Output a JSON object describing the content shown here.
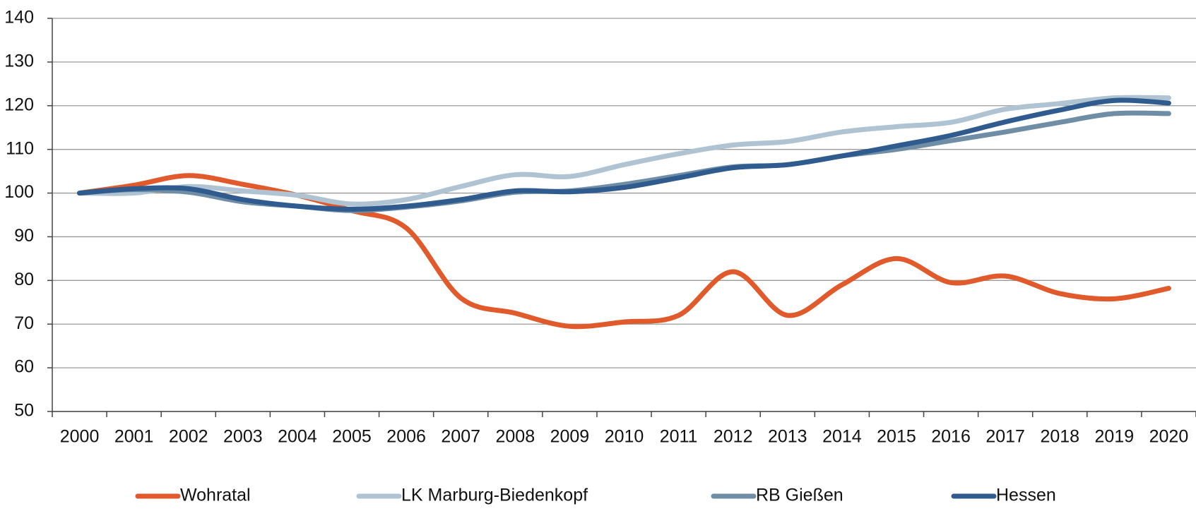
{
  "chart_data": {
    "type": "line",
    "categories": [
      "2000",
      "2001",
      "2002",
      "2003",
      "2004",
      "2005",
      "2006",
      "2007",
      "2008",
      "2009",
      "2010",
      "2011",
      "2012",
      "2013",
      "2014",
      "2015",
      "2016",
      "2017",
      "2018",
      "2019",
      "2020"
    ],
    "series": [
      {
        "name": "Wohratal",
        "color": "#e05a2b",
        "values": [
          100,
          101.8,
          104,
          102,
          99.5,
          96,
          92,
          76,
          72.5,
          69.5,
          70.5,
          72,
          82,
          72,
          79,
          85,
          79.5,
          81,
          77,
          75.8,
          78.2
        ]
      },
      {
        "name": "LK Marburg-Biedenkopf",
        "color": "#b0c3d3",
        "values": [
          100,
          100,
          101.5,
          100.5,
          99.5,
          97.5,
          98.5,
          101.5,
          104.2,
          103.8,
          106.5,
          109,
          111,
          111.8,
          114,
          115.2,
          116.2,
          119.2,
          120.5,
          121.8,
          121.8
        ]
      },
      {
        "name": "RB Gießen",
        "color": "#6f8ea6",
        "values": [
          100,
          100.8,
          100.2,
          98,
          97,
          96,
          96.8,
          98.2,
          100.2,
          100.5,
          102,
          104,
          106,
          106.5,
          108.5,
          110,
          112,
          114,
          116.2,
          118.2,
          118.2
        ]
      },
      {
        "name": "Hessen",
        "color": "#2f5b8e",
        "values": [
          100,
          101,
          101,
          98.5,
          97,
          96.3,
          97,
          98.5,
          100.5,
          100.3,
          101.3,
          103.5,
          105.8,
          106.5,
          108.5,
          110.8,
          113.2,
          116.3,
          119,
          121.2,
          120.6
        ]
      }
    ],
    "ylim": [
      50,
      140
    ],
    "yticks": [
      50,
      60,
      70,
      80,
      90,
      100,
      110,
      120,
      130,
      140
    ],
    "grid": true,
    "legend": "bottom"
  }
}
